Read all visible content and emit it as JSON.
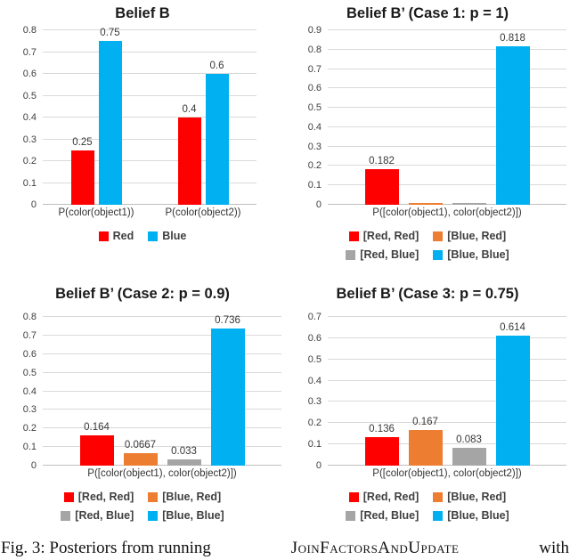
{
  "figure": {
    "caption": {
      "prefix": "Fig. 3: Posteriors from running",
      "algorithm": "JoinFactorsAndUpdate",
      "suffix": "with"
    }
  },
  "colors": {
    "red": "#FF0000",
    "orange": "#ED7D31",
    "gray": "#A5A5A5",
    "blue": "#00B0F0",
    "gridline": "#D9D9D9",
    "axis_line": "#BFBFBF",
    "title_text": "#1A1A1A",
    "label_text": "#404040"
  },
  "chart_data": [
    {
      "id": "belief-b",
      "type": "bar",
      "title": "Belief B",
      "categories": [
        "P(color(object1))",
        "P(color(object2))"
      ],
      "series": [
        {
          "name": "Red",
          "color_key": "red",
          "values": [
            0.25,
            0.4
          ],
          "data_labels": [
            "0.25",
            "0.4"
          ]
        },
        {
          "name": "Blue",
          "color_key": "blue",
          "values": [
            0.75,
            0.6
          ],
          "data_labels": [
            "0.75",
            "0.6"
          ]
        }
      ],
      "ylim": [
        0,
        0.8
      ],
      "ytick_step": 0.1,
      "grid": true,
      "legend_position": "bottom"
    },
    {
      "id": "belief-b-prime-case-1",
      "type": "bar",
      "title": "Belief B’ (Case 1: p = 1)",
      "categories": [
        "P([color(object1), color(object2)])"
      ],
      "series": [
        {
          "name": "[Red, Red]",
          "color_key": "red",
          "values": [
            0.182
          ],
          "data_labels": [
            "0.182"
          ]
        },
        {
          "name": "[Blue, Red]",
          "color_key": "orange",
          "values": [
            0
          ],
          "data_labels": [
            ""
          ]
        },
        {
          "name": "[Red, Blue]",
          "color_key": "gray",
          "values": [
            0
          ],
          "data_labels": [
            ""
          ]
        },
        {
          "name": "[Blue, Blue]",
          "color_key": "blue",
          "values": [
            0.818
          ],
          "data_labels": [
            "0.818"
          ]
        }
      ],
      "ylim": [
        0,
        0.9
      ],
      "ytick_step": 0.1,
      "grid": true,
      "legend_position": "bottom"
    },
    {
      "id": "belief-b-prime-case-2",
      "type": "bar",
      "title": "Belief B’ (Case 2: p = 0.9)",
      "categories": [
        "P([color(object1), color(object2)])"
      ],
      "series": [
        {
          "name": "[Red, Red]",
          "color_key": "red",
          "values": [
            0.164
          ],
          "data_labels": [
            "0.164"
          ]
        },
        {
          "name": "[Blue, Red]",
          "color_key": "orange",
          "values": [
            0.0667
          ],
          "data_labels": [
            "0.0667"
          ]
        },
        {
          "name": "[Red, Blue]",
          "color_key": "gray",
          "values": [
            0.033
          ],
          "data_labels": [
            "0.033"
          ]
        },
        {
          "name": "[Blue, Blue]",
          "color_key": "blue",
          "values": [
            0.736
          ],
          "data_labels": [
            "0.736"
          ]
        }
      ],
      "ylim": [
        0,
        0.8
      ],
      "ytick_step": 0.1,
      "grid": true,
      "legend_position": "bottom"
    },
    {
      "id": "belief-b-prime-case-3",
      "type": "bar",
      "title": "Belief B’ (Case 3: p = 0.75)",
      "categories": [
        "P([color(object1), color(object2)])"
      ],
      "series": [
        {
          "name": "[Red, Red]",
          "color_key": "red",
          "values": [
            0.136
          ],
          "data_labels": [
            "0.136"
          ]
        },
        {
          "name": "[Blue, Red]",
          "color_key": "orange",
          "values": [
            0.167
          ],
          "data_labels": [
            "0.167"
          ]
        },
        {
          "name": "[Red, Blue]",
          "color_key": "gray",
          "values": [
            0.083
          ],
          "data_labels": [
            "0.083"
          ]
        },
        {
          "name": "[Blue, Blue]",
          "color_key": "blue",
          "values": [
            0.614
          ],
          "data_labels": [
            "0.614"
          ]
        }
      ],
      "ylim": [
        0,
        0.7
      ],
      "ytick_step": 0.1,
      "grid": true,
      "legend_position": "bottom"
    }
  ]
}
